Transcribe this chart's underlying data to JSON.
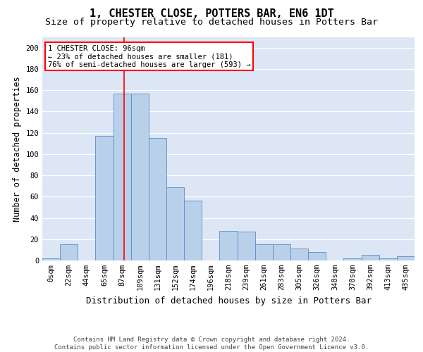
{
  "title": "1, CHESTER CLOSE, POTTERS BAR, EN6 1DT",
  "subtitle": "Size of property relative to detached houses in Potters Bar",
  "xlabel": "Distribution of detached houses by size in Potters Bar",
  "ylabel": "Number of detached properties",
  "bar_labels": [
    "0sqm",
    "22sqm",
    "44sqm",
    "65sqm",
    "87sqm",
    "109sqm",
    "131sqm",
    "152sqm",
    "174sqm",
    "196sqm",
    "218sqm",
    "239sqm",
    "261sqm",
    "283sqm",
    "305sqm",
    "326sqm",
    "348sqm",
    "370sqm",
    "392sqm",
    "413sqm",
    "435sqm"
  ],
  "bar_values": [
    2,
    15,
    0,
    117,
    157,
    157,
    115,
    69,
    56,
    0,
    28,
    27,
    15,
    15,
    11,
    8,
    0,
    2,
    5,
    2,
    4
  ],
  "bar_color": "#b8d0ea",
  "bar_edgecolor": "#5b8dc8",
  "background_color": "#dce6f5",
  "property_label": "1 CHESTER CLOSE: 96sqm",
  "annotation_line1": "← 23% of detached houses are smaller (181)",
  "annotation_line2": "76% of semi-detached houses are larger (593) →",
  "vline_color": "red",
  "vline_position": 4.1,
  "annotation_box_color": "white",
  "annotation_box_edgecolor": "red",
  "footer_text": "Contains HM Land Registry data © Crown copyright and database right 2024.\nContains public sector information licensed under the Open Government Licence v3.0.",
  "ylim": [
    0,
    210
  ],
  "yticks": [
    0,
    20,
    40,
    60,
    80,
    100,
    120,
    140,
    160,
    180,
    200
  ],
  "title_fontsize": 11,
  "subtitle_fontsize": 9.5,
  "xlabel_fontsize": 9,
  "ylabel_fontsize": 8.5,
  "tick_fontsize": 7.5,
  "annot_fontsize": 7.5,
  "footer_fontsize": 6.5
}
